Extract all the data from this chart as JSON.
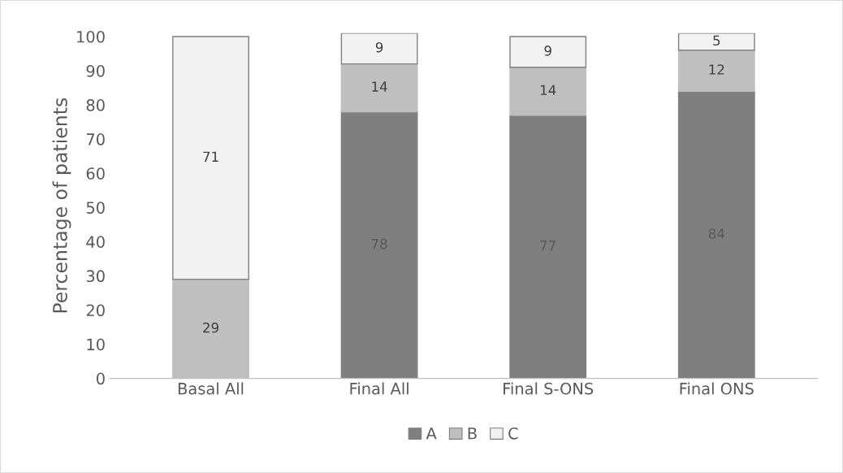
{
  "chart_data": {
    "type": "bar",
    "stacked": true,
    "ylabel": "Percentage of patients",
    "categories": [
      "Basal All",
      "Final All",
      "Final S-ONS",
      "Final ONS"
    ],
    "series": [
      {
        "name": "A",
        "color": "#7f7f7f",
        "values": [
          null,
          78,
          77,
          84
        ]
      },
      {
        "name": "B",
        "color": "#bfbfbf",
        "values": [
          29,
          14,
          14,
          12
        ]
      },
      {
        "name": "C",
        "color": "#f2f2f2",
        "values": [
          71,
          9,
          9,
          5
        ]
      }
    ],
    "ylim": [
      0,
      101
    ],
    "yticks": [
      0,
      10,
      20,
      30,
      40,
      50,
      60,
      70,
      80,
      90,
      100
    ],
    "data_labels": true,
    "grid": false,
    "legend": "bottom"
  }
}
